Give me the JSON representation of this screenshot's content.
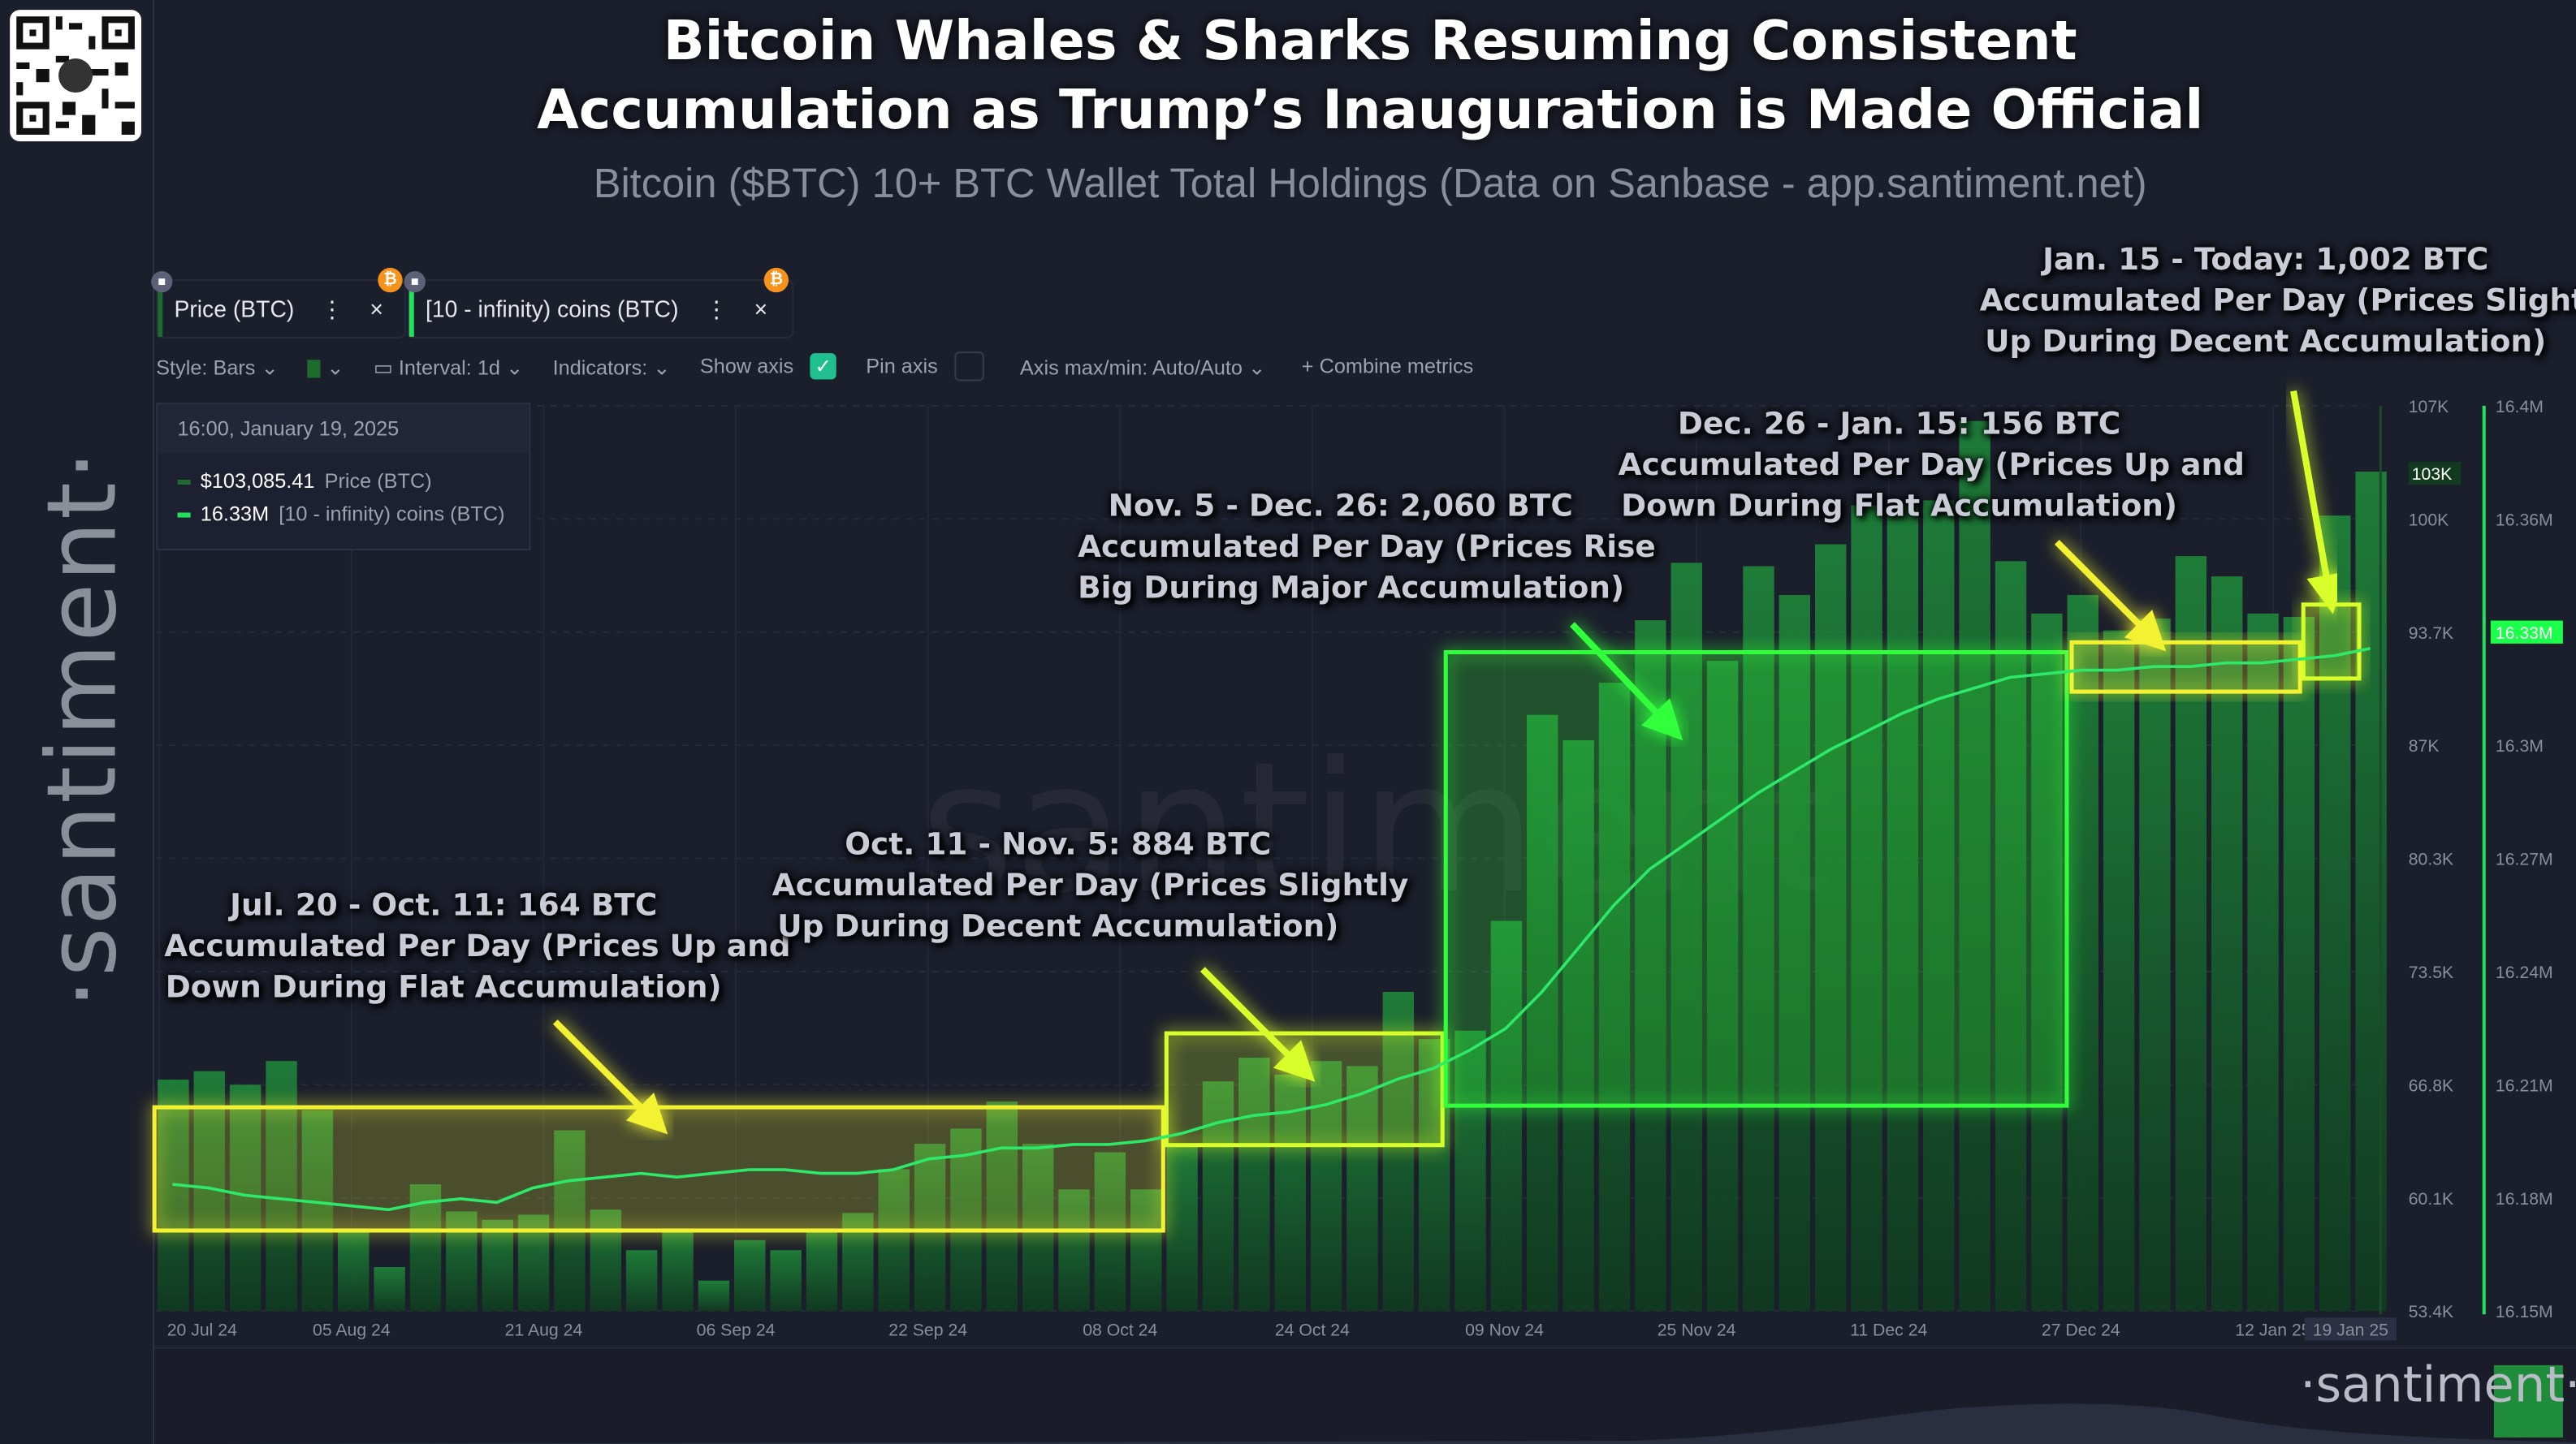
{
  "header": {
    "title_line1": "Bitcoin Whales & Sharks Resuming Consistent",
    "title_line2": "Accumulation as Trump’s Inauguration is Made Official",
    "subtitle": "Bitcoin ($BTC) 10+ BTC Wallet Total Holdings (Data on Sanbase - app.santiment.net)",
    "brand": "·santiment·",
    "watermark": "santiment",
    "bottom_brand": "·santiment·",
    "qr_icon": "qr-code-icon"
  },
  "metrics": [
    {
      "label": "Price (BTC)",
      "color": "#1d6b2e"
    },
    {
      "label": "[10 - infinity) coins (BTC)",
      "color": "#22e05a"
    }
  ],
  "toolbar": {
    "style": "Style: Bars",
    "interval": "Interval: 1d",
    "indicators": "Indicators:",
    "show_axis": "Show axis",
    "show_axis_checked": true,
    "pin_axis": "Pin axis",
    "pin_axis_checked": false,
    "axis_minmax": "Axis max/min: Auto/Auto",
    "combine": "Combine metrics"
  },
  "tooltip": {
    "datetime": "16:00, January 19, 2025",
    "price_value": "$103,085.41",
    "price_label": "Price (BTC)",
    "holdings_value": "16.33M",
    "holdings_label": "[10 - infinity) coins (BTC)"
  },
  "annotations": [
    {
      "lines": [
        "Jul. 20 - Oct. 11: 164 BTC",
        "Accumulated Per Day (Prices Up and",
        "Down During Flat Accumulation)"
      ],
      "color": "#f2f230"
    },
    {
      "lines": [
        "Oct. 11 - Nov. 5: 884 BTC",
        "Accumulated Per Day (Prices Slightly",
        "Up During Decent Accumulation)"
      ],
      "color": "#d8ff2a"
    },
    {
      "lines": [
        "Nov. 5 - Dec. 26: 2,060 BTC",
        "Accumulated Per Day (Prices Rise",
        "Big During Major Accumulation)"
      ],
      "color": "#33ff3a"
    },
    {
      "lines": [
        "Dec. 26 - Jan. 15: 156 BTC",
        "Accumulated Per Day (Prices Up and",
        "Down During Flat Accumulation)"
      ],
      "color": "#f2f230"
    },
    {
      "lines": [
        "Jan. 15 - Today: 1,002 BTC",
        "Accumulated Per Day (Prices Slightly",
        "Up During Decent Accumulation)"
      ],
      "color": "#d8ff2a"
    }
  ],
  "chart_data": {
    "type": "bar+line",
    "x_tick_labels": [
      "20 Jul 24",
      "05 Aug 24",
      "21 Aug 24",
      "06 Sep 24",
      "22 Sep 24",
      "08 Oct 24",
      "24 Oct 24",
      "09 Nov 24",
      "25 Nov 24",
      "11 Dec 24",
      "27 Dec 24",
      "12 Jan 25",
      "19 Jan 25"
    ],
    "x_ticks": [
      "2024-07-20",
      "2024-08-05",
      "2024-08-21",
      "2024-09-06",
      "2024-09-22",
      "2024-10-08",
      "2024-10-24",
      "2024-11-09",
      "2024-11-25",
      "2024-12-11",
      "2024-12-27",
      "2025-01-12",
      "2025-01-19"
    ],
    "price_axis": {
      "ticks": [
        "107K",
        "100K",
        "93.7K",
        "87K",
        "80.3K",
        "73.5K",
        "66.8K",
        "60.1K",
        "53.4K"
      ],
      "range": [
        53.4,
        107
      ],
      "current_label": "103K"
    },
    "holdings_axis": {
      "ticks": [
        "16.4M",
        "16.36M",
        "16.33M",
        "16.3M",
        "16.27M",
        "16.24M",
        "16.21M",
        "16.18M",
        "16.15M"
      ],
      "range": [
        16.15,
        16.4
      ],
      "current_label": "16.33M"
    },
    "x": [
      "2024-07-20",
      "2024-07-23",
      "2024-07-26",
      "2024-07-29",
      "2024-08-01",
      "2024-08-04",
      "2024-08-07",
      "2024-08-10",
      "2024-08-13",
      "2024-08-16",
      "2024-08-19",
      "2024-08-22",
      "2024-08-25",
      "2024-08-28",
      "2024-08-31",
      "2024-09-03",
      "2024-09-06",
      "2024-09-09",
      "2024-09-12",
      "2024-09-15",
      "2024-09-18",
      "2024-09-21",
      "2024-09-24",
      "2024-09-27",
      "2024-09-30",
      "2024-10-03",
      "2024-10-06",
      "2024-10-09",
      "2024-10-12",
      "2024-10-15",
      "2024-10-18",
      "2024-10-21",
      "2024-10-24",
      "2024-10-27",
      "2024-10-30",
      "2024-11-02",
      "2024-11-05",
      "2024-11-08",
      "2024-11-11",
      "2024-11-14",
      "2024-11-17",
      "2024-11-20",
      "2024-11-23",
      "2024-11-26",
      "2024-11-29",
      "2024-12-02",
      "2024-12-05",
      "2024-12-08",
      "2024-12-11",
      "2024-12-14",
      "2024-12-17",
      "2024-12-20",
      "2024-12-23",
      "2024-12-26",
      "2024-12-29",
      "2025-01-01",
      "2025-01-04",
      "2025-01-07",
      "2025-01-10",
      "2025-01-13",
      "2025-01-16",
      "2025-01-19"
    ],
    "series": [
      {
        "name": "Price (BTC)",
        "kind": "bar",
        "unit": "K USD",
        "color": "#1d7a34",
        "values": [
          67.1,
          67.6,
          66.8,
          68.2,
          65.3,
          58.1,
          56.0,
          60.9,
          59.3,
          58.8,
          59.1,
          64.1,
          59.4,
          57.0,
          58.1,
          55.2,
          57.6,
          57.0,
          58.1,
          59.2,
          61.8,
          63.3,
          64.2,
          65.8,
          63.3,
          60.6,
          62.8,
          60.6,
          63.2,
          67.0,
          68.4,
          67.4,
          68.2,
          67.9,
          72.3,
          69.5,
          70.0,
          76.5,
          88.7,
          87.2,
          90.6,
          94.3,
          97.7,
          91.9,
          97.5,
          95.8,
          98.8,
          101.1,
          101.1,
          101.4,
          106.1,
          97.8,
          94.7,
          95.8,
          93.7,
          94.4,
          98.1,
          96.9,
          94.7,
          94.5,
          100.5,
          103.1
        ]
      },
      {
        "name": "[10 - infinity) coins (BTC)",
        "kind": "line",
        "unit": "M BTC",
        "color": "#2ee86a",
        "values": [
          16.185,
          16.184,
          16.182,
          16.181,
          16.18,
          16.179,
          16.178,
          16.18,
          16.181,
          16.18,
          16.184,
          16.186,
          16.187,
          16.188,
          16.187,
          16.188,
          16.189,
          16.189,
          16.188,
          16.188,
          16.189,
          16.192,
          16.193,
          16.195,
          16.195,
          16.196,
          16.196,
          16.197,
          16.199,
          16.202,
          16.204,
          16.205,
          16.207,
          16.21,
          16.214,
          16.217,
          16.222,
          16.228,
          16.238,
          16.25,
          16.262,
          16.272,
          16.279,
          16.286,
          16.293,
          16.299,
          16.305,
          16.31,
          16.315,
          16.319,
          16.322,
          16.325,
          16.326,
          16.327,
          16.327,
          16.328,
          16.328,
          16.329,
          16.329,
          16.33,
          16.331,
          16.333
        ]
      }
    ],
    "highlight_periods": [
      {
        "from": "2024-07-20",
        "to": "2024-10-11",
        "color": "#f2f230"
      },
      {
        "from": "2024-10-11",
        "to": "2024-11-05",
        "color": "#d8ff2a"
      },
      {
        "from": "2024-11-05",
        "to": "2024-12-26",
        "color": "#33ff3a"
      },
      {
        "from": "2024-12-26",
        "to": "2025-01-15",
        "color": "#f2f230"
      },
      {
        "from": "2025-01-15",
        "to": "2025-01-19",
        "color": "#d8ff2a"
      }
    ],
    "grid": true,
    "legend": "top-left"
  }
}
